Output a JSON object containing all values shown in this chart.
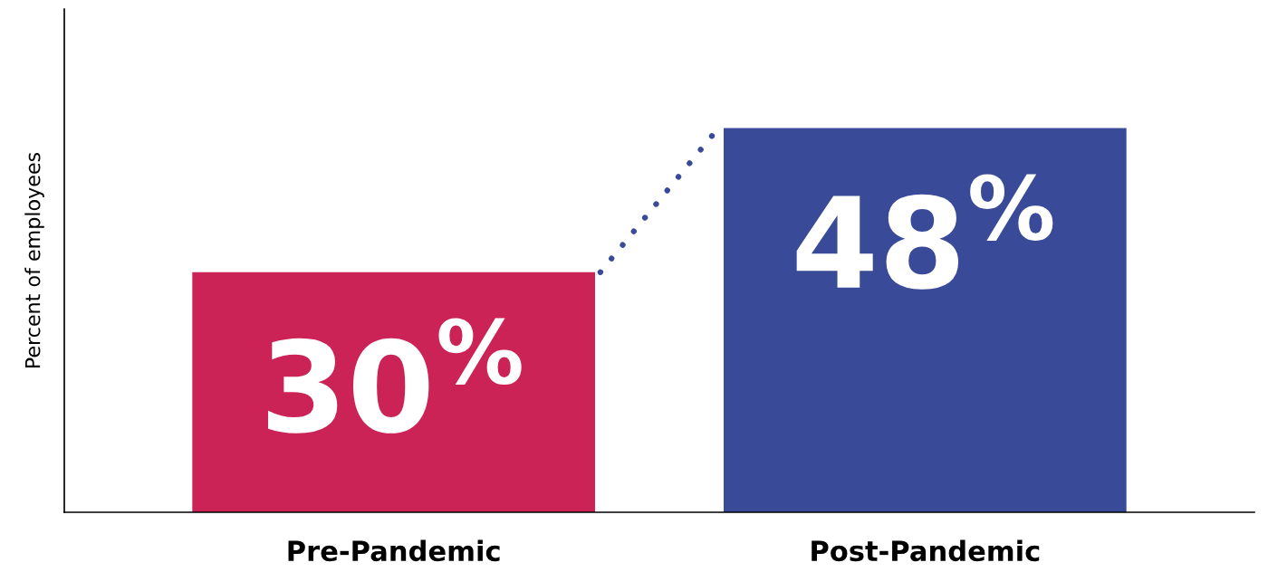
{
  "chart_data": {
    "type": "bar",
    "ylabel": "Percent of employees",
    "categories": [
      "Pre-Pandemic",
      "Post-Pandemic"
    ],
    "values": [
      30,
      48
    ],
    "colors": [
      "#cb2355",
      "#394a98"
    ],
    "value_labels": [
      "30$^{%}$",
      "48$^{%}$"
    ],
    "tick_labels": "x"
  }
}
